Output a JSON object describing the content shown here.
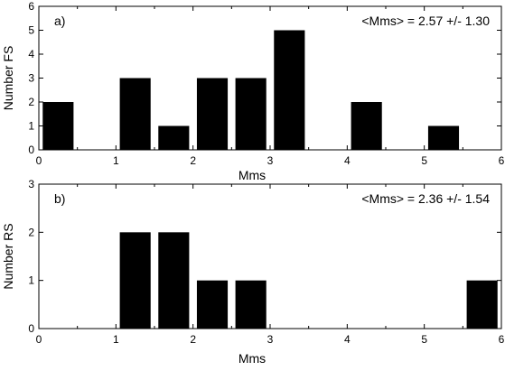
{
  "chart_data": [
    {
      "type": "bar",
      "panel_label": "a)",
      "annotation": "<Mms> = 2.57 +/- 1.30",
      "xlabel": "Mms",
      "ylabel": "Number FS",
      "xlim": [
        0,
        6
      ],
      "ylim": [
        0,
        6
      ],
      "xticks": [
        "0",
        "1",
        "2",
        "3",
        "4",
        "5",
        "6"
      ],
      "yticks": [
        "0",
        "1",
        "2",
        "3",
        "4",
        "5",
        "6"
      ],
      "bar_width": 0.4,
      "bars": [
        {
          "x": 0.25,
          "value": 2
        },
        {
          "x": 1.25,
          "value": 3
        },
        {
          "x": 1.75,
          "value": 1
        },
        {
          "x": 2.25,
          "value": 3
        },
        {
          "x": 2.75,
          "value": 3
        },
        {
          "x": 3.25,
          "value": 5
        },
        {
          "x": 4.25,
          "value": 2
        },
        {
          "x": 5.25,
          "value": 1
        }
      ],
      "grid": false,
      "bar_color": "#000000"
    },
    {
      "type": "bar",
      "panel_label": "b)",
      "annotation": "<Mms> = 2.36 +/- 1.54",
      "xlabel": "Mms",
      "ylabel": "Number RS",
      "xlim": [
        0,
        6
      ],
      "ylim": [
        0,
        3
      ],
      "xticks": [
        "0",
        "1",
        "2",
        "3",
        "4",
        "5",
        "6"
      ],
      "yticks": [
        "0",
        "1",
        "2",
        "3"
      ],
      "bar_width": 0.4,
      "bars": [
        {
          "x": 1.25,
          "value": 2
        },
        {
          "x": 1.75,
          "value": 2
        },
        {
          "x": 2.25,
          "value": 1
        },
        {
          "x": 2.75,
          "value": 1
        },
        {
          "x": 5.75,
          "value": 1
        }
      ],
      "grid": false,
      "bar_color": "#000000"
    }
  ]
}
